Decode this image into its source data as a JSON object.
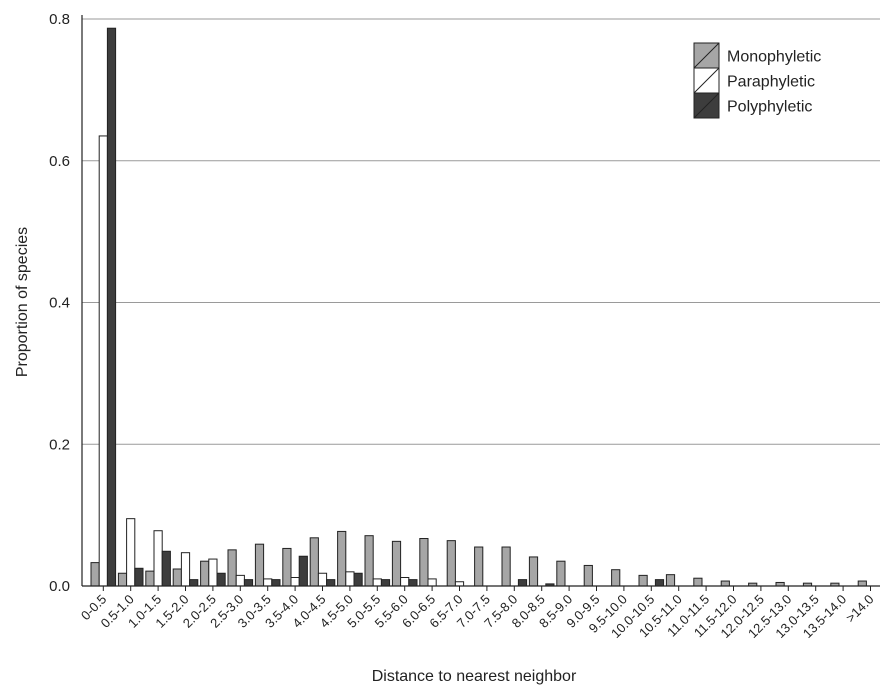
{
  "chart_data": {
    "type": "bar",
    "xlabel": "Distance to nearest neighbor",
    "ylabel": "Proportion of species",
    "ylim": [
      0,
      0.8
    ],
    "yticks": [
      "0.0",
      "0.2",
      "0.4",
      "0.6",
      "0.8"
    ],
    "grid": true,
    "legend_position": "top-right",
    "categories": [
      "0-0.5",
      "0.5-1.0",
      "1.0-1.5",
      "1.5-2.0",
      "2.0-2.5",
      "2.5-3.0",
      "3.0-3.5",
      "3.5-4.0",
      "4.0-4.5",
      "4.5-5.0",
      "5.0-5.5",
      "5.5-6.0",
      "6.0-6.5",
      "6.5-7.0",
      "7.0-7.5",
      "7.5-8.0",
      "8.0-8.5",
      "8.5-9.0",
      "9.0-9.5",
      "9.5-10.0",
      "10.0-10.5",
      "10.5-11.0",
      "11.0-11.5",
      "11.5-12.0",
      "12.0-12.5",
      "12.5-13.0",
      "13.0-13.5",
      "13.5-14.0",
      ">14.0"
    ],
    "series": [
      {
        "name": "Monophyletic",
        "color": "#a6a6a6",
        "values": [
          0.033,
          0.018,
          0.021,
          0.024,
          0.035,
          0.051,
          0.059,
          0.053,
          0.068,
          0.077,
          0.071,
          0.063,
          0.067,
          0.064,
          0.055,
          0.055,
          0.041,
          0.035,
          0.029,
          0.023,
          0.015,
          0.016,
          0.011,
          0.007,
          0.004,
          0.005,
          0.004,
          0.004,
          0.007
        ]
      },
      {
        "name": "Paraphyletic",
        "color": "#ffffff",
        "values": [
          0.635,
          0.095,
          0.078,
          0.047,
          0.038,
          0.015,
          0.01,
          0.012,
          0.018,
          0.02,
          0.01,
          0.012,
          0.01,
          0.006,
          0.0,
          0.0,
          0.0,
          0.0,
          0.0,
          0.0,
          0.0,
          0.0,
          0.0,
          0.0,
          0.0,
          0.0,
          0.0,
          0.0,
          0.0
        ]
      },
      {
        "name": "Polyphyletic",
        "color": "#3d3d3d",
        "values": [
          0.787,
          0.025,
          0.049,
          0.009,
          0.018,
          0.009,
          0.009,
          0.042,
          0.009,
          0.018,
          0.009,
          0.009,
          0.0,
          0.0,
          0.0,
          0.009,
          0.003,
          0.0,
          0.0,
          0.0,
          0.009,
          0.0,
          0.0,
          0.0,
          0.0,
          0.0,
          0.0,
          0.0,
          0.0
        ]
      }
    ]
  }
}
